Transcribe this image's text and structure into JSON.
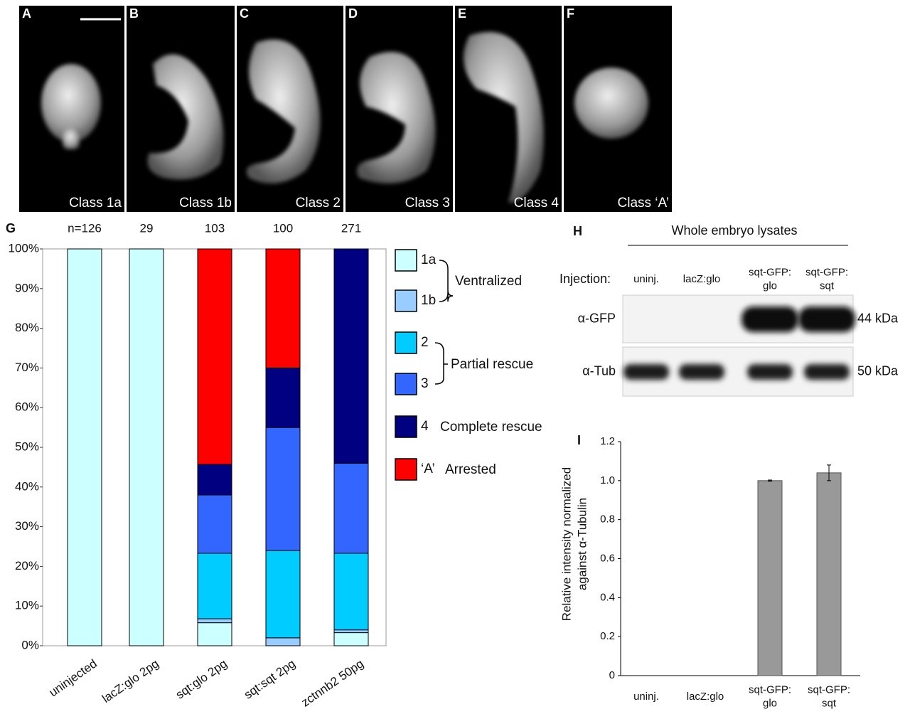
{
  "panels": [
    {
      "letter": "A",
      "caption": "Class 1a"
    },
    {
      "letter": "B",
      "caption": "Class 1b"
    },
    {
      "letter": "C",
      "caption": "Class 2"
    },
    {
      "letter": "D",
      "caption": "Class 3"
    },
    {
      "letter": "E",
      "caption": "Class 4"
    },
    {
      "letter": "F",
      "caption": "Class ‘A’"
    }
  ],
  "chart_data": [
    {
      "type": "stacked_bar",
      "letter": "G",
      "categories": [
        "uninjected",
        "lacZ:glo 2pg",
        "sqt:glo 2pg",
        "sqt:sqt 2pg",
        "zctnnb2 50pg"
      ],
      "annotations": [
        "n=126",
        "29",
        "103",
        "100",
        "271"
      ],
      "series": [
        {
          "name": "1a",
          "color": "#ccffff",
          "values": [
            100,
            100,
            5.8,
            0,
            3.3
          ]
        },
        {
          "name": "1b",
          "color": "#99ccff",
          "values": [
            0,
            0,
            1,
            2,
            0.7
          ]
        },
        {
          "name": "2",
          "color": "#00ccff",
          "values": [
            0,
            0,
            16.5,
            22,
            19.3
          ]
        },
        {
          "name": "3",
          "color": "#3366ff",
          "values": [
            0,
            0,
            14.7,
            31,
            22.7
          ]
        },
        {
          "name": "4",
          "color": "#000080",
          "values": [
            0,
            0,
            7.7,
            15,
            54
          ]
        },
        {
          "name": "‘A’",
          "color": "#ff0000",
          "values": [
            0,
            0,
            54.3,
            30,
            0
          ]
        }
      ],
      "legend_groups": [
        "Ventralized",
        "Partial rescue",
        "Complete rescue",
        "Arrested"
      ],
      "ylim": [
        0,
        100
      ],
      "yticks": [
        {
          "value": 0,
          "label": "0%"
        },
        {
          "value": 10,
          "label": "10%"
        },
        {
          "value": 20,
          "label": "20%"
        },
        {
          "value": 30,
          "label": "30%"
        },
        {
          "value": 40,
          "label": "40%"
        },
        {
          "value": 50,
          "label": "50%"
        },
        {
          "value": 60,
          "label": "60%"
        },
        {
          "value": 70,
          "label": "70%"
        },
        {
          "value": 80,
          "label": "80%"
        },
        {
          "value": 90,
          "label": "90%"
        },
        {
          "value": 100,
          "label": "100%"
        }
      ]
    },
    {
      "type": "bar",
      "letter": "I",
      "categories": [
        [
          "uninj."
        ],
        [
          "lacZ:glo"
        ],
        [
          "sqt-GFP:",
          "glo"
        ],
        [
          "sqt-GFP:",
          "sqt"
        ]
      ],
      "values": [
        0,
        0,
        1.0,
        1.04
      ],
      "errors": [
        0,
        0,
        0.003,
        0.04
      ],
      "color": "#999999",
      "ylabel": [
        "Relative intensity normalized",
        "against α-Tubulin"
      ],
      "ylim": [
        0,
        1.2
      ],
      "yticks": [
        0,
        0.2,
        0.4,
        0.6,
        0.8,
        {
          "value": 1,
          "label": "1.0"
        },
        1.2
      ]
    }
  ],
  "blot": {
    "letter": "H",
    "title": "Whole embryo lysates",
    "injection_label": "Injection:",
    "lanes": [
      [
        "uninj."
      ],
      [
        "lacZ:glo"
      ],
      [
        "sqt-GFP:",
        "glo"
      ],
      [
        "sqt-GFP:",
        "sqt"
      ]
    ],
    "rows": [
      {
        "antibody": "α-GFP",
        "size": "44 kDa"
      },
      {
        "antibody": "α-Tub",
        "size": "50 kDa"
      }
    ]
  }
}
